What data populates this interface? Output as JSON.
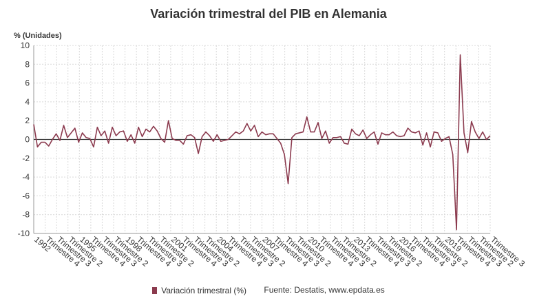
{
  "colors": {
    "series": "#8b3a4e",
    "zero_line": "#333333",
    "grid": "#d9d9d9",
    "axis": "#999999"
  },
  "chart_data": {
    "type": "line",
    "title": "Variación trimestral del PIB en Alemania",
    "ylabel": "% (Unidades)",
    "xlabel": "",
    "ylim": [
      -10,
      10
    ],
    "yticks": [
      10,
      8,
      6,
      4,
      2,
      0,
      -2,
      -4,
      -6,
      -8,
      -10
    ],
    "grid": true,
    "legend_position": "bottom",
    "x_tick_labels": [
      "1992",
      "Trimestre 4",
      "Trimestre 3",
      "Trimestre 2",
      "1995",
      "Trimestre 4",
      "Trimestre 3",
      "Trimestre 2",
      "1998",
      "Trimestre 4",
      "Trimestre 3",
      "Trimestre 2",
      "2001",
      "Trimestre 4",
      "Trimestre 3",
      "Trimestre 2",
      "2004",
      "Trimestre 4",
      "Trimestre 3",
      "Trimestre 2",
      "2007",
      "Trimestre 4",
      "Trimestre 3",
      "Trimestre 2",
      "2010",
      "Trimestre 4",
      "Trimestre 3",
      "Trimestre 2",
      "2013",
      "Trimestre 4",
      "Trimestre 3",
      "Trimestre 2",
      "2016",
      "Trimestre 4",
      "Trimestre 3",
      "Trimestre 2",
      "2019",
      "Trimestre 4",
      "Trimestre 3",
      "Trimestre 2",
      "Trimestre 3"
    ],
    "series": [
      {
        "name": "Variación trimestral (%)",
        "values": [
          1.6,
          -0.8,
          -0.3,
          -0.3,
          -0.7,
          0.0,
          0.6,
          -0.1,
          1.5,
          0.2,
          0.7,
          1.2,
          -0.3,
          0.7,
          0.2,
          0.1,
          -0.8,
          1.3,
          0.4,
          0.9,
          -0.4,
          1.3,
          0.4,
          0.8,
          0.9,
          -0.2,
          0.5,
          -0.4,
          1.3,
          0.3,
          1.1,
          0.8,
          1.4,
          0.9,
          0.1,
          -0.3,
          2.0,
          0.1,
          -0.1,
          -0.1,
          -0.5,
          0.4,
          0.5,
          0.2,
          -1.5,
          0.3,
          0.8,
          0.4,
          -0.2,
          0.5,
          -0.2,
          -0.1,
          0.0,
          0.4,
          0.8,
          0.6,
          0.9,
          1.7,
          0.9,
          1.5,
          0.3,
          0.8,
          0.5,
          0.6,
          0.6,
          0.1,
          -0.4,
          -1.6,
          -4.7,
          0.2,
          0.6,
          0.7,
          0.8,
          2.4,
          0.8,
          0.8,
          1.8,
          0.1,
          0.9,
          -0.4,
          0.2,
          0.2,
          0.3,
          -0.4,
          -0.5,
          1.1,
          0.6,
          0.4,
          1.0,
          0.1,
          0.5,
          0.8,
          -0.5,
          0.7,
          0.5,
          0.5,
          0.8,
          0.4,
          0.3,
          0.4,
          1.2,
          0.8,
          0.7,
          0.9,
          -0.6,
          0.7,
          -0.8,
          0.8,
          0.7,
          -0.2,
          0.1,
          0.3,
          -1.6,
          -9.6,
          9.0,
          0.7,
          -1.4,
          1.9,
          0.8,
          0.1,
          0.8,
          0.0,
          0.4
        ]
      }
    ]
  },
  "legend": {
    "label": "Variación trimestral (%)"
  },
  "source": {
    "text": "Fuente: Destatis, www.epdata.es"
  }
}
